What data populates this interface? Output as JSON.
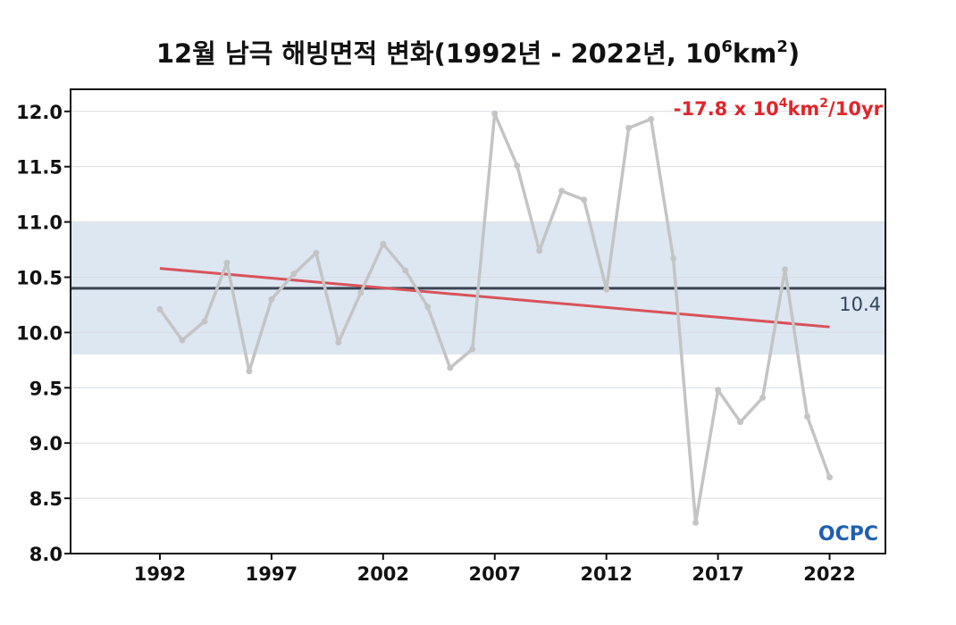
{
  "title": {
    "main": "12월 남극 해빙면적 변화(1992년 - 2022년, 10",
    "sup1": "6",
    "mid": "km",
    "sup2": "2",
    "end": ")"
  },
  "annotation": {
    "prefix": "-17.8 x 10",
    "sup1": "4",
    "mid": "km",
    "sup2": "2",
    "suffix": "/10yr"
  },
  "mean_label": "10.4",
  "logo": "OCPC",
  "colors": {
    "series": "#c4c4c4",
    "trend": "#d9525a",
    "mean": "#3b4452",
    "band": "#dde7f1",
    "annotation": "#e0262b",
    "logo": "#1f5fae"
  },
  "chart_data": {
    "type": "line",
    "x": [
      1992,
      1993,
      1994,
      1995,
      1996,
      1997,
      1998,
      1999,
      2000,
      2001,
      2002,
      2003,
      2004,
      2005,
      2006,
      2007,
      2008,
      2009,
      2010,
      2011,
      2012,
      2013,
      2014,
      2015,
      2016,
      2017,
      2018,
      2019,
      2020,
      2021,
      2022
    ],
    "series": [
      {
        "values": [
          10.21,
          9.93,
          10.1,
          10.63,
          9.65,
          10.3,
          10.53,
          10.72,
          9.91,
          10.36,
          10.8,
          10.56,
          10.23,
          9.68,
          9.85,
          11.98,
          11.51,
          10.74,
          11.28,
          11.2,
          10.39,
          11.85,
          11.93,
          10.67,
          8.28,
          9.48,
          9.19,
          9.41,
          10.57,
          9.24,
          8.69
        ]
      }
    ],
    "trend": {
      "x": [
        1992,
        2022
      ],
      "y": [
        10.58,
        10.05
      ]
    },
    "mean": 10.4,
    "band": [
      9.8,
      11.0
    ],
    "xlim": [
      1988,
      2024.5
    ],
    "ylim": [
      8.0,
      12.2
    ],
    "xticks": [
      1992,
      1997,
      2002,
      2007,
      2012,
      2017,
      2022
    ],
    "yticks": [
      8.0,
      8.5,
      9.0,
      9.5,
      10.0,
      10.5,
      11.0,
      11.5,
      12.0
    ],
    "grid": true
  }
}
